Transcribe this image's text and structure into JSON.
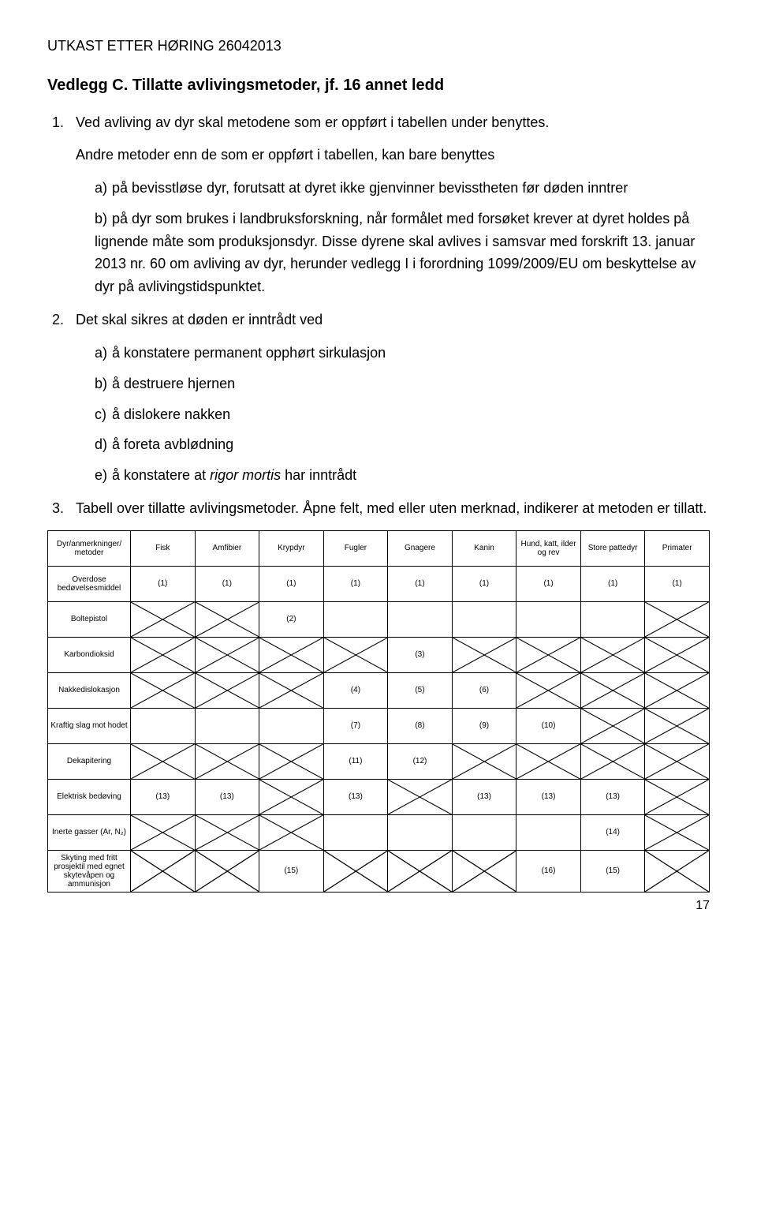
{
  "header": "UTKAST ETTER HØRING 26042013",
  "title": "Vedlegg C. Tillatte avlivingsmetoder, jf. 16 annet ledd",
  "item1": {
    "lead": "Ved avliving av dyr skal metodene som er oppført i tabellen under benyttes.",
    "para2": "Andre metoder enn de som er oppført i tabellen, kan bare benyttes",
    "a": "på bevisstløse dyr, forutsatt at dyret ikke gjenvinner bevisstheten før døden inntrer",
    "b": "på dyr som brukes i landbruksforskning, når formålet med forsøket krever at dyret holdes på lignende måte som produksjonsdyr. Disse dyrene skal avlives i samsvar med forskrift 13. januar 2013 nr. 60 om avliving av dyr, herunder vedlegg I i forordning 1099/2009/EU om beskyttelse av dyr på avlivingstidspunktet."
  },
  "item2": {
    "lead": "Det skal sikres at døden er inntrådt ved",
    "a": "å konstatere permanent opphørt sirkulasjon",
    "b": "å destruere hjernen",
    "c": "å dislokere nakken",
    "d": "å foreta avblødning",
    "e_pre": "å konstatere at ",
    "e_italic": "rigor mortis",
    "e_post": " har inntrådt"
  },
  "item3": {
    "lead": "Tabell over tillatte avlivingsmetoder. Åpne felt, med eller uten merknad, indikerer at metoden er tillatt."
  },
  "table": {
    "col_header_label": "Dyr/anmerkninger/ metoder",
    "columns": [
      "Fisk",
      "Amfibier",
      "Krypdyr",
      "Fugler",
      "Gnagere",
      "Kanin",
      "Hund, katt, ilder og rev",
      "Store pattedyr",
      "Primater"
    ],
    "rows": [
      {
        "label": "Overdose bedøvelsesmiddel",
        "cells": [
          "(1)",
          "(1)",
          "(1)",
          "(1)",
          "(1)",
          "(1)",
          "(1)",
          "(1)",
          "(1)"
        ]
      },
      {
        "label": "Boltepistol",
        "cells": [
          "X",
          "X",
          "(2)",
          "",
          "",
          "",
          "",
          "",
          "X"
        ]
      },
      {
        "label": "Karbondioksid",
        "cells": [
          "X",
          "X",
          "X",
          "X",
          "(3)",
          "X",
          "X",
          "X",
          "X"
        ]
      },
      {
        "label": "Nakkedislokasjon",
        "cells": [
          "X",
          "X",
          "X",
          "(4)",
          "(5)",
          "(6)",
          "X",
          "X",
          "X"
        ]
      },
      {
        "label": "Kraftig slag mot hodet",
        "cells": [
          "",
          "",
          "",
          "(7)",
          "(8)",
          "(9)",
          "(10)",
          "X",
          "X"
        ]
      },
      {
        "label": "Dekapitering",
        "cells": [
          "X",
          "X",
          "X",
          "(11)",
          "(12)",
          "X",
          "X",
          "X",
          "X"
        ]
      },
      {
        "label": "Elektrisk bedøving",
        "cells": [
          "(13)",
          "(13)",
          "X",
          "(13)",
          "X",
          "(13)",
          "(13)",
          "(13)",
          "X"
        ]
      },
      {
        "label": "Inerte gasser (Ar, N₂)",
        "cells": [
          "X",
          "X",
          "X",
          "",
          "",
          "",
          "",
          "(14)",
          "X"
        ]
      },
      {
        "label": "Skyting med fritt prosjektil med egnet skytevåpen og ammunisjon",
        "cells": [
          "X",
          "X",
          "(15)",
          "X",
          "X",
          "X",
          "(16)",
          "(15)",
          "X"
        ]
      }
    ],
    "x_stroke": "#000000",
    "x_width": 1,
    "border_color": "#000000",
    "font_size_header": 10,
    "font_size_cell": 10
  },
  "page_number": "17"
}
